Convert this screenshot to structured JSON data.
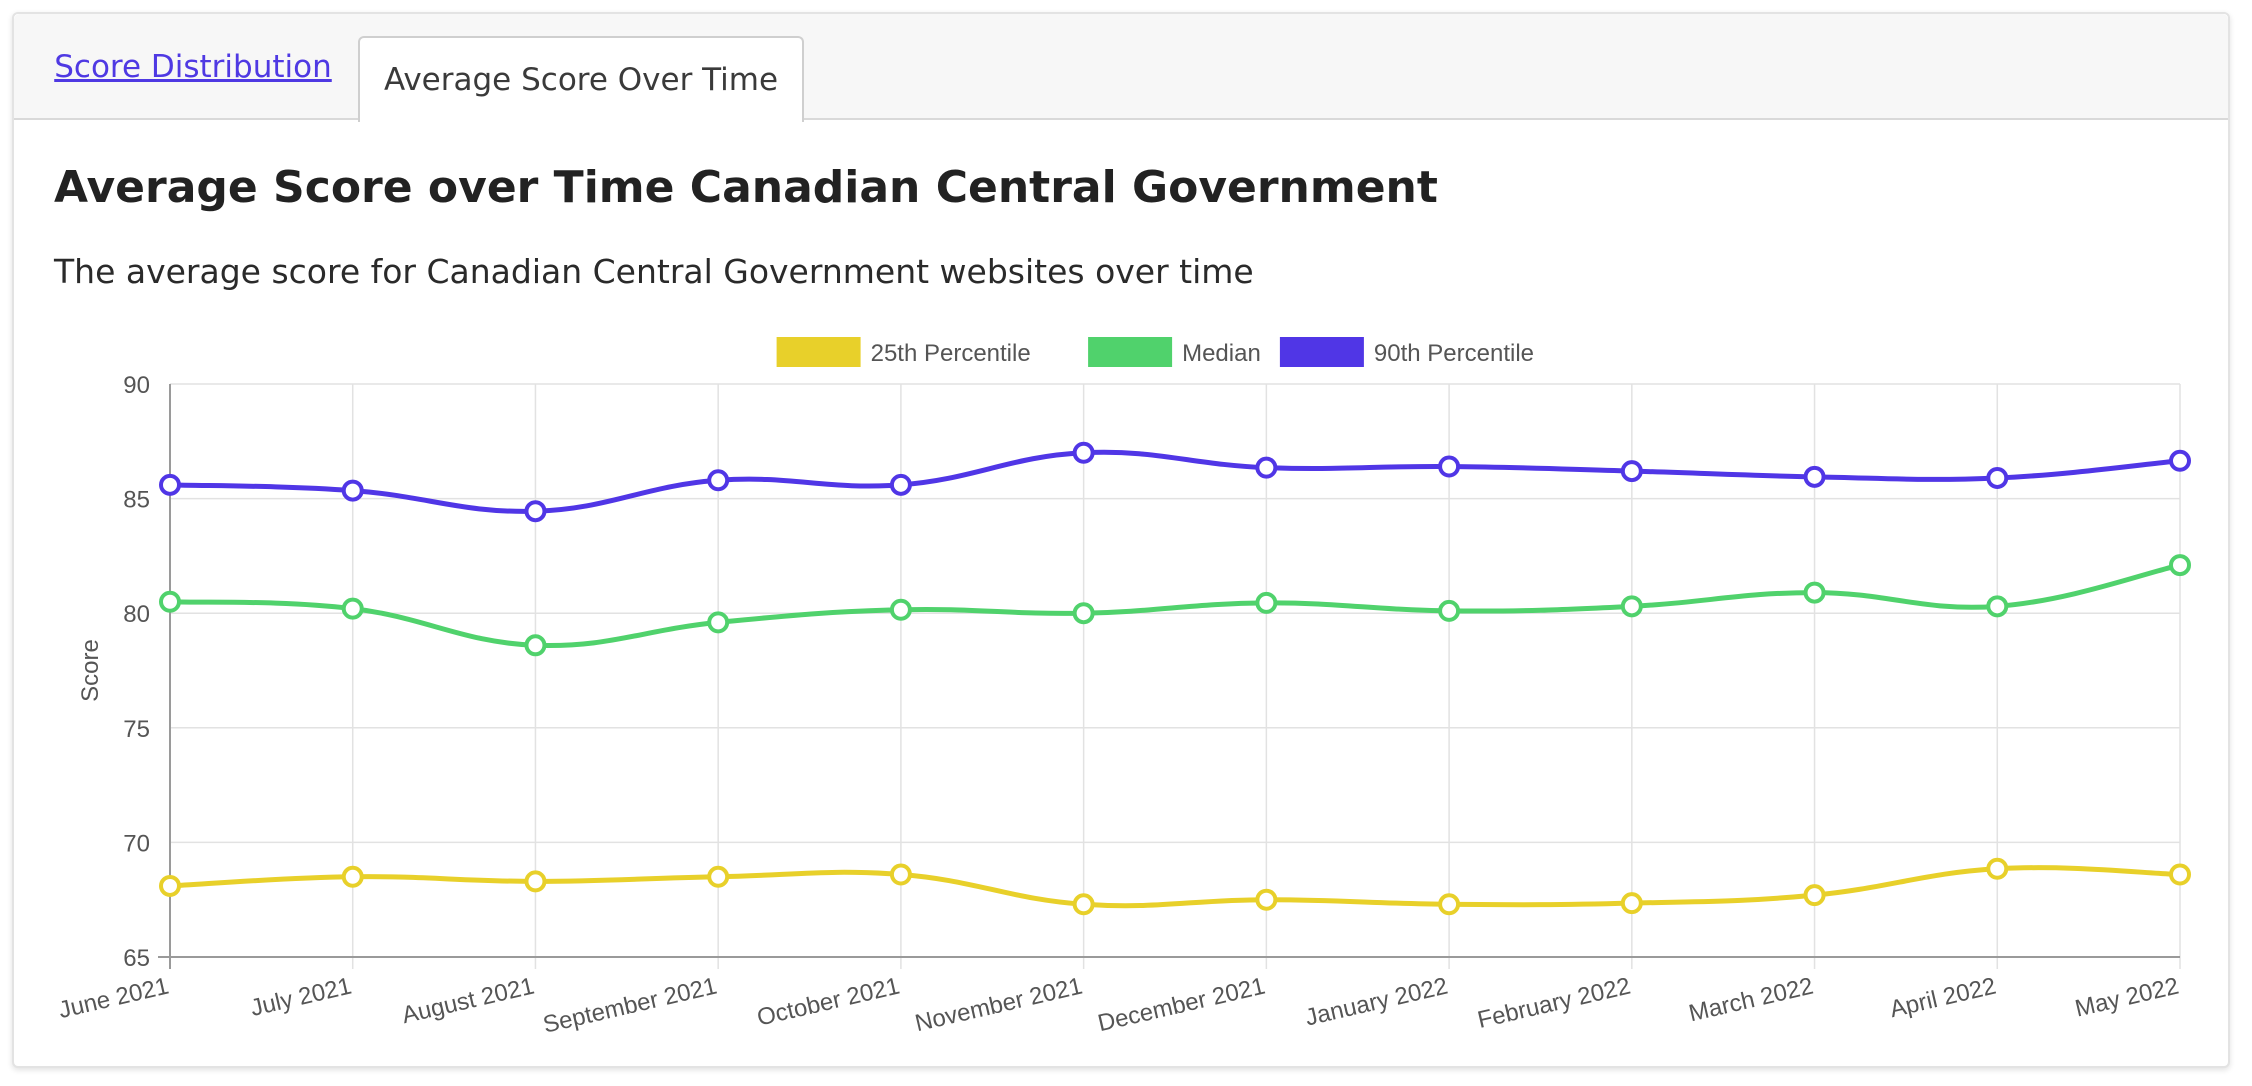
{
  "tabs": [
    {
      "label": "Score Distribution",
      "active": false
    },
    {
      "label": "Average Score Over Time",
      "active": true
    }
  ],
  "heading": {
    "title": "Average Score over Time Canadian Central Government",
    "subtitle": "The average score for Canadian Central Government websites over time"
  },
  "chart_data": {
    "type": "line",
    "categories": [
      "June 2021",
      "July 2021",
      "August 2021",
      "September 2021",
      "October 2021",
      "November 2021",
      "December 2021",
      "January 2022",
      "February 2022",
      "March 2022",
      "April 2022",
      "May 2022"
    ],
    "ylabel": "Score",
    "xlabel": "",
    "ylim": [
      65,
      90
    ],
    "yticks": [
      65,
      70,
      75,
      80,
      85,
      90
    ],
    "grid": true,
    "legend_position": "top",
    "series": [
      {
        "name": "25th Percentile",
        "color": "#e8d02a",
        "values": [
          68.1,
          68.5,
          68.3,
          68.5,
          68.6,
          67.3,
          67.5,
          67.3,
          67.35,
          67.7,
          68.85,
          68.6
        ]
      },
      {
        "name": "Median",
        "color": "#50d26c",
        "values": [
          80.5,
          80.2,
          78.6,
          79.6,
          80.15,
          80.0,
          80.45,
          80.1,
          80.3,
          80.9,
          80.3,
          82.1
        ]
      },
      {
        "name": "90th Percentile",
        "color": "#5036e6",
        "values": [
          85.6,
          85.35,
          84.45,
          85.8,
          85.6,
          87.0,
          86.35,
          86.4,
          86.2,
          85.95,
          85.9,
          86.65
        ]
      }
    ]
  }
}
